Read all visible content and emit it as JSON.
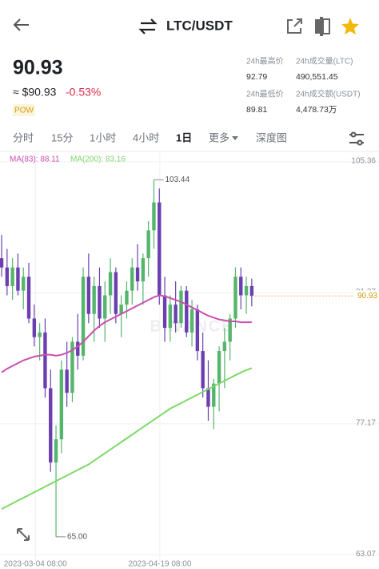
{
  "header": {
    "pair": "LTC/USDT"
  },
  "price": {
    "last": "90.93",
    "usd": "≈ $90.93",
    "change": "-0.53%",
    "tag": "POW"
  },
  "stats": [
    {
      "label": "24h最高价",
      "value": "92.79"
    },
    {
      "label": "24h成交量(LTC)",
      "value": "490,551.45"
    },
    {
      "label": "24h最低价",
      "value": "89.81"
    },
    {
      "label": "24h成交额(USDT)",
      "value": "4,478.73万"
    }
  ],
  "tabs": [
    "分时",
    "15分",
    "1小时",
    "4小时",
    "1日",
    "更多",
    "深度图"
  ],
  "chart_data": {
    "type": "candlestick",
    "watermark": "BINANCE",
    "up_color": "#55b56c",
    "down_color": "#6b3fb0",
    "ylim": [
      62.4,
      106.4
    ],
    "yticks": [
      105.36,
      91.27,
      77.17,
      63.07
    ],
    "xlim": [
      -0.3,
      69.4
    ],
    "xticks": [
      {
        "value": 6.2,
        "label": "2023-03-04 08:00"
      },
      {
        "value": 29.1,
        "label": "2023-04-19 08:00"
      }
    ],
    "grid": true,
    "last_price": 90.93,
    "annotations": [
      {
        "value": 103.44,
        "label": "103.44"
      },
      {
        "value": 65,
        "label": "65.00"
      }
    ],
    "candles": [
      [
        95,
        97.5,
        93,
        94
      ],
      [
        94,
        96,
        91,
        92
      ],
      [
        92,
        95,
        90.5,
        94
      ],
      [
        94,
        95.5,
        91,
        91.5
      ],
      [
        91.5,
        94,
        89.5,
        93
      ],
      [
        93,
        94.5,
        88,
        88.5
      ],
      [
        88.5,
        90,
        85.5,
        86.5
      ],
      [
        86.5,
        88,
        84,
        87
      ],
      [
        87,
        88.5,
        80,
        81
      ],
      [
        81,
        83,
        72,
        73
      ],
      [
        73,
        77,
        65,
        75.5
      ],
      [
        75.5,
        84,
        74,
        83
      ],
      [
        83,
        86,
        79,
        80.5
      ],
      [
        80.5,
        86.5,
        79.5,
        86
      ],
      [
        86,
        89,
        83,
        84.5
      ],
      [
        84.5,
        94,
        84,
        93
      ],
      [
        93,
        95.5,
        88,
        89
      ],
      [
        89,
        93,
        86,
        92
      ],
      [
        92,
        94,
        87.5,
        88.5
      ],
      [
        88.5,
        92.5,
        86,
        91
      ],
      [
        91,
        95,
        89,
        93.5
      ],
      [
        93.5,
        94,
        88,
        89
      ],
      [
        89,
        91,
        86.5,
        90
      ],
      [
        90,
        92.5,
        88.5,
        91.5
      ],
      [
        91.5,
        95,
        90,
        94
      ],
      [
        94,
        96.5,
        91.5,
        92.5
      ],
      [
        92.5,
        95.5,
        90,
        95
      ],
      [
        95,
        99,
        93,
        98
      ],
      [
        98,
        103.44,
        96,
        101
      ],
      [
        101,
        102.5,
        90,
        91
      ],
      [
        91,
        93,
        86,
        87.5
      ],
      [
        87.5,
        91,
        86,
        90
      ],
      [
        90,
        92.5,
        87,
        88
      ],
      [
        88,
        92,
        87.5,
        91.5
      ],
      [
        91.5,
        92,
        86.5,
        87
      ],
      [
        87,
        90.5,
        85.5,
        89.5
      ],
      [
        89.5,
        90,
        84,
        85
      ],
      [
        85,
        87,
        80,
        81
      ],
      [
        81,
        84,
        77.5,
        79
      ],
      [
        79,
        82,
        76.6,
        81.5
      ],
      [
        81.5,
        85.5,
        78.5,
        85
      ],
      [
        85,
        87.5,
        81,
        86
      ],
      [
        86,
        89,
        84,
        88.5
      ],
      [
        88.5,
        94,
        87.5,
        93
      ],
      [
        93,
        94,
        89.5,
        91
      ],
      [
        91,
        93,
        89,
        92
      ],
      [
        92,
        92.79,
        89.81,
        90.93
      ]
    ],
    "series": [
      {
        "name": "MA(83): 88.11",
        "color": "#c94fb0",
        "values": [
          82.7,
          83.1,
          83.4,
          83.7,
          84.0,
          84.2,
          84.4,
          84.5,
          84.6,
          84.6,
          84.5,
          84.6,
          84.8,
          85.1,
          85.5,
          86.0,
          86.6,
          87.2,
          87.7,
          88.1,
          88.4,
          88.7,
          89.0,
          89.3,
          89.6,
          89.9,
          90.2,
          90.5,
          90.8,
          91.0,
          90.9,
          90.7,
          90.5,
          90.3,
          90.0,
          89.7,
          89.4,
          89.1,
          88.8,
          88.6,
          88.4,
          88.3,
          88.2,
          88.2,
          88.1,
          88.1,
          88.11
        ]
      },
      {
        "name": "MA(200): 83.16",
        "color": "#7ed96a",
        "values": [
          68.0,
          68.3,
          68.6,
          68.9,
          69.2,
          69.5,
          69.8,
          70.1,
          70.4,
          70.7,
          71.0,
          71.3,
          71.6,
          71.9,
          72.2,
          72.5,
          72.8,
          73.2,
          73.6,
          74.0,
          74.4,
          74.8,
          75.2,
          75.6,
          76.0,
          76.4,
          76.8,
          77.2,
          77.6,
          78.0,
          78.4,
          78.8,
          79.1,
          79.4,
          79.7,
          80.0,
          80.3,
          80.6,
          80.9,
          81.2,
          81.5,
          81.8,
          82.1,
          82.4,
          82.7,
          82.95,
          83.16
        ]
      }
    ]
  }
}
